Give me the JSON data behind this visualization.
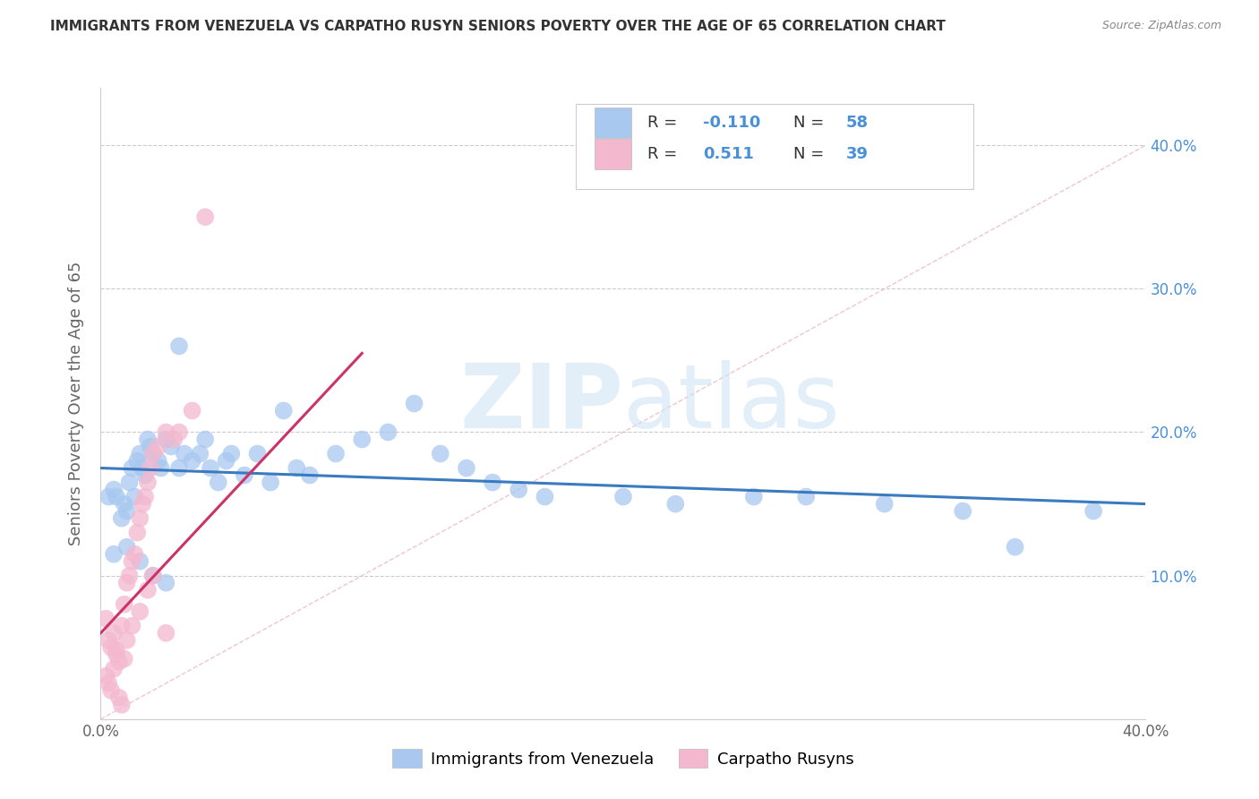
{
  "title": "IMMIGRANTS FROM VENEZUELA VS CARPATHO RUSYN SENIORS POVERTY OVER THE AGE OF 65 CORRELATION CHART",
  "source": "Source: ZipAtlas.com",
  "ylabel": "Seniors Poverty Over the Age of 65",
  "xlim": [
    0.0,
    0.4
  ],
  "ylim": [
    0.0,
    0.44
  ],
  "y_ticks": [
    0.0,
    0.1,
    0.2,
    0.3,
    0.4
  ],
  "legend_items": [
    {
      "color": "#a8c8f0",
      "R": "-0.110",
      "N": "58",
      "label": "Immigrants from Venezuela"
    },
    {
      "color": "#f4b8ce",
      "R": "0.511",
      "N": "39",
      "label": "Carpatho Rusyns"
    }
  ],
  "blue_scatter_x": [
    0.003,
    0.005,
    0.006,
    0.008,
    0.009,
    0.01,
    0.011,
    0.012,
    0.013,
    0.014,
    0.015,
    0.016,
    0.017,
    0.018,
    0.019,
    0.02,
    0.022,
    0.023,
    0.025,
    0.027,
    0.03,
    0.032,
    0.035,
    0.038,
    0.04,
    0.042,
    0.045,
    0.048,
    0.05,
    0.055,
    0.06,
    0.065,
    0.07,
    0.075,
    0.08,
    0.09,
    0.1,
    0.11,
    0.12,
    0.13,
    0.14,
    0.15,
    0.16,
    0.17,
    0.2,
    0.22,
    0.25,
    0.27,
    0.3,
    0.33,
    0.35,
    0.38,
    0.005,
    0.01,
    0.015,
    0.02,
    0.025,
    0.03
  ],
  "blue_scatter_y": [
    0.155,
    0.16,
    0.155,
    0.14,
    0.15,
    0.145,
    0.165,
    0.175,
    0.155,
    0.18,
    0.185,
    0.175,
    0.17,
    0.195,
    0.19,
    0.185,
    0.18,
    0.175,
    0.195,
    0.19,
    0.175,
    0.185,
    0.18,
    0.185,
    0.195,
    0.175,
    0.165,
    0.18,
    0.185,
    0.17,
    0.185,
    0.165,
    0.215,
    0.175,
    0.17,
    0.185,
    0.195,
    0.2,
    0.22,
    0.185,
    0.175,
    0.165,
    0.16,
    0.155,
    0.155,
    0.15,
    0.155,
    0.155,
    0.15,
    0.145,
    0.12,
    0.145,
    0.115,
    0.12,
    0.11,
    0.1,
    0.095,
    0.26
  ],
  "pink_scatter_x": [
    0.002,
    0.003,
    0.004,
    0.005,
    0.006,
    0.007,
    0.008,
    0.009,
    0.01,
    0.011,
    0.012,
    0.013,
    0.014,
    0.015,
    0.016,
    0.017,
    0.018,
    0.019,
    0.02,
    0.022,
    0.025,
    0.028,
    0.03,
    0.035,
    0.04,
    0.002,
    0.003,
    0.004,
    0.005,
    0.006,
    0.007,
    0.008,
    0.009,
    0.01,
    0.012,
    0.015,
    0.018,
    0.02,
    0.025
  ],
  "pink_scatter_y": [
    0.07,
    0.055,
    0.05,
    0.06,
    0.048,
    0.04,
    0.065,
    0.08,
    0.095,
    0.1,
    0.11,
    0.115,
    0.13,
    0.14,
    0.15,
    0.155,
    0.165,
    0.175,
    0.185,
    0.19,
    0.2,
    0.195,
    0.2,
    0.215,
    0.35,
    0.03,
    0.025,
    0.02,
    0.035,
    0.045,
    0.015,
    0.01,
    0.042,
    0.055,
    0.065,
    0.075,
    0.09,
    0.1,
    0.06
  ],
  "blue_line_x": [
    0.0,
    0.4
  ],
  "blue_line_y": [
    0.175,
    0.15
  ],
  "pink_line_x": [
    0.0,
    0.1
  ],
  "pink_line_y": [
    0.06,
    0.255
  ],
  "diag_line_x": [
    0.0,
    0.4
  ],
  "diag_line_y": [
    0.0,
    0.4
  ],
  "blue_line_color": "#3a7abf",
  "pink_line_color": "#cc3366",
  "blue_scatter_color": "#a8c8f0",
  "pink_scatter_color": "#f4b8ce",
  "diag_color": "#e8b8c8",
  "watermark_zip": "ZIP",
  "watermark_atlas": "atlas",
  "background_color": "#ffffff",
  "grid_color": "#cccccc",
  "title_color": "#333333",
  "axis_label_color": "#666666",
  "right_axis_color": "#4a90d9",
  "legend_R_color": "#4a90d9",
  "legend_N_color": "#4a90d9"
}
